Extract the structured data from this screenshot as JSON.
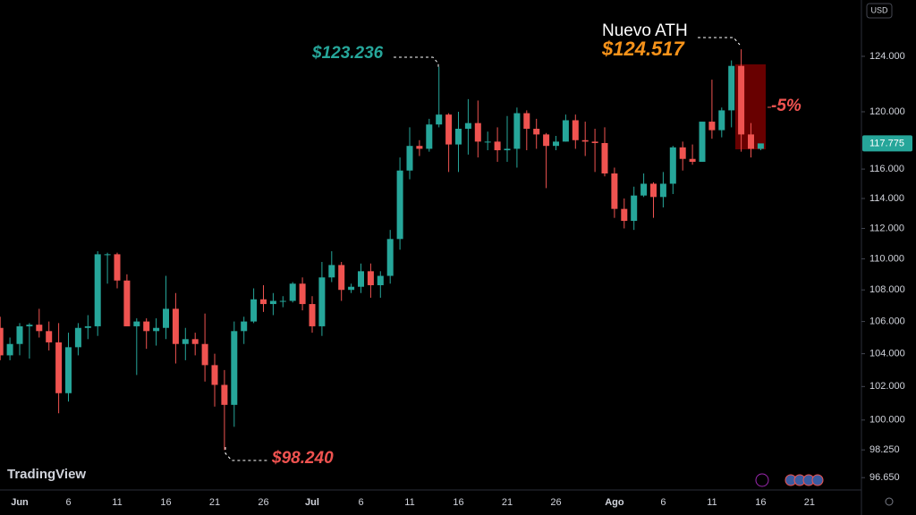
{
  "chart_data": {
    "type": "candlestick",
    "currency": "USD",
    "watermark": "TradingView",
    "log_scale": true,
    "up_color": "#26a69a",
    "down_color": "#ef5350",
    "categories": [
      null,
      null,
      "Jun",
      null,
      null,
      null,
      null,
      "6",
      null,
      null,
      null,
      null,
      "11",
      null,
      null,
      null,
      null,
      "16",
      null,
      null,
      null,
      null,
      "21",
      null,
      null,
      null,
      null,
      "26",
      null,
      null,
      null,
      null,
      "Jul",
      null,
      null,
      null,
      null,
      "6",
      null,
      null,
      null,
      null,
      "11",
      null,
      null,
      null,
      null,
      "16",
      null,
      null,
      null,
      null,
      "21",
      null,
      null,
      null,
      null,
      "26",
      null,
      null,
      null,
      null,
      null,
      "Ago",
      null,
      null,
      null,
      null,
      "6",
      null,
      null,
      null,
      null,
      "11",
      null,
      null,
      null,
      null,
      "16",
      null,
      null,
      null,
      null,
      "21",
      null,
      null,
      null,
      null,
      null
    ],
    "open": [
      105600,
      103900,
      104600,
      105700,
      105800,
      105400,
      104700,
      101600,
      104400,
      105600,
      105700,
      110300,
      110300,
      108600,
      105700,
      106000,
      105400,
      105600,
      106800,
      104600,
      104900,
      104600,
      103300,
      102100,
      100900,
      105400,
      106000,
      107400,
      107100,
      107300,
      107300,
      108400,
      107100,
      105700,
      108800,
      109600,
      108000,
      108200,
      109200,
      108300,
      108900,
      111300,
      115900,
      117600,
      117400,
      119100,
      119800,
      117700,
      118800,
      119200,
      117900,
      117900,
      117300,
      117400,
      119900,
      118800,
      118400,
      117600,
      117900,
      119400,
      118000,
      117900,
      117800,
      115700,
      113300,
      112500,
      114200,
      115000,
      114100,
      115000,
      117500,
      116700,
      116500,
      119300,
      118700,
      120100,
      123300,
      118400,
      117400,
      null,
      null,
      null,
      null,
      null,
      null,
      null,
      null,
      null,
      null
    ],
    "high": [
      106300,
      105000,
      105900,
      105900,
      106800,
      106000,
      105900,
      105300,
      105900,
      106400,
      110500,
      110400,
      110400,
      109000,
      106200,
      106200,
      106200,
      108900,
      107800,
      105600,
      105300,
      106500,
      104000,
      103000,
      106000,
      106300,
      108100,
      108300,
      107800,
      107600,
      108500,
      108800,
      107600,
      109800,
      110500,
      109800,
      108400,
      109700,
      109700,
      109200,
      111900,
      116800,
      118900,
      118000,
      119500,
      123236,
      119900,
      120000,
      120900,
      120800,
      118600,
      118900,
      119700,
      120300,
      120100,
      119500,
      118500,
      118300,
      119800,
      119800,
      119300,
      118800,
      118900,
      116100,
      114000,
      114800,
      115700,
      115100,
      115800,
      117600,
      117900,
      117700,
      119300,
      122300,
      120300,
      123700,
      124517,
      119200,
      117700,
      null,
      null,
      null,
      null,
      null,
      null,
      null,
      null,
      null,
      null
    ],
    "low": [
      103600,
      103600,
      103900,
      103700,
      105000,
      104200,
      100400,
      101100,
      103900,
      104900,
      105100,
      108400,
      108100,
      105700,
      102700,
      104300,
      104500,
      104900,
      103400,
      103600,
      103900,
      102300,
      100800,
      98240,
      99600,
      104600,
      105900,
      106600,
      106400,
      106900,
      107200,
      106700,
      105300,
      105100,
      108500,
      107300,
      107800,
      107800,
      107500,
      107500,
      108400,
      110600,
      115300,
      116900,
      117200,
      118900,
      115800,
      115800,
      117000,
      116800,
      117300,
      116500,
      116500,
      116100,
      117300,
      117400,
      114700,
      117300,
      117900,
      117400,
      116900,
      115800,
      115500,
      112700,
      112000,
      111900,
      114100,
      112700,
      113400,
      114300,
      115900,
      116300,
      116500,
      118100,
      118200,
      118900,
      117200,
      116800,
      117300,
      null,
      null,
      null,
      null,
      null,
      null,
      null,
      null,
      null,
      null
    ],
    "close": [
      103900,
      104600,
      105700,
      105800,
      105400,
      104700,
      101600,
      104400,
      105600,
      105700,
      110300,
      110300,
      108600,
      105700,
      106000,
      105400,
      105600,
      106800,
      104600,
      104900,
      104600,
      103300,
      102100,
      100900,
      105400,
      106000,
      107400,
      107100,
      107300,
      107300,
      108400,
      107100,
      105700,
      108800,
      109600,
      108000,
      108200,
      109200,
      108300,
      108900,
      111300,
      115900,
      117600,
      117400,
      119100,
      119800,
      117700,
      118800,
      119200,
      117900,
      117900,
      117300,
      117400,
      119900,
      118800,
      118400,
      117600,
      117900,
      119400,
      118000,
      117900,
      117800,
      115700,
      113300,
      112500,
      114200,
      115000,
      114100,
      115000,
      117500,
      116700,
      116500,
      119300,
      118700,
      120100,
      123300,
      118400,
      117400,
      117775,
      null,
      null,
      null,
      null,
      null,
      null,
      null,
      null,
      null,
      null
    ],
    "ylim": [
      96100,
      128200
    ],
    "yticks": [
      {
        "value": 124000,
        "label": "124.000"
      },
      {
        "value": 120000,
        "label": "120.000"
      },
      {
        "value": 116000,
        "label": "116.000"
      },
      {
        "value": 114000,
        "label": "114.000"
      },
      {
        "value": 112000,
        "label": "112.000"
      },
      {
        "value": 110000,
        "label": "110.000"
      },
      {
        "value": 108000,
        "label": "108.000"
      },
      {
        "value": 106000,
        "label": "106.000"
      },
      {
        "value": 104000,
        "label": "104.000"
      },
      {
        "value": 102000,
        "label": "102.000"
      },
      {
        "value": 100000,
        "label": "100.000"
      },
      {
        "value": 98250,
        "label": "98.250"
      },
      {
        "value": 96650,
        "label": "96.650"
      }
    ],
    "current_price": {
      "value": 117775,
      "label": "117.775"
    },
    "annotations": [
      {
        "text": "$123.236",
        "color": "#26a69a"
      },
      {
        "text": "$98.240",
        "color": "#ef5350"
      },
      {
        "text": "Nuevo ATH",
        "color": "#ffffff"
      },
      {
        "text": "$124.517",
        "color": "#f7931a"
      },
      {
        "text": "-5%",
        "color": "#ef5350"
      }
    ]
  }
}
